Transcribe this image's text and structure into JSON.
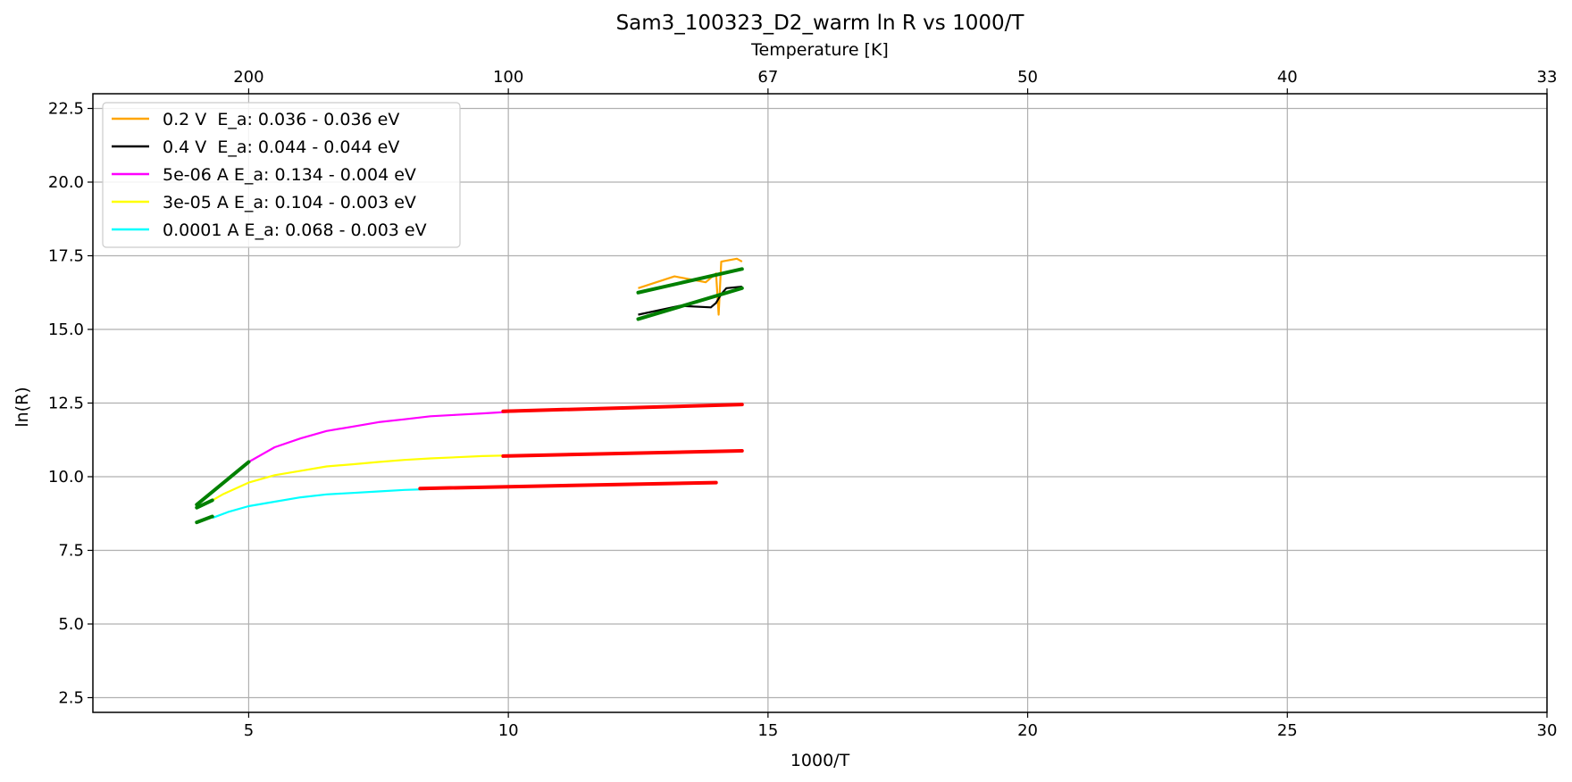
{
  "chart_data": {
    "type": "line",
    "title": "Sam3_100323_D2_warm ln R vs 1000/T",
    "xlabel": "1000/T",
    "ylabel": "ln(R)",
    "top_xlabel": "Temperature [K]",
    "xlim": [
      2,
      30
    ],
    "ylim": [
      2,
      23
    ],
    "x_ticks": [
      5,
      10,
      15,
      20,
      25,
      30
    ],
    "y_ticks": [
      2.5,
      5.0,
      7.5,
      10.0,
      12.5,
      15.0,
      17.5,
      20.0,
      22.5
    ],
    "top_ticks": [
      {
        "x": 5,
        "label": "200"
      },
      {
        "x": 10,
        "label": "100"
      },
      {
        "x": 15,
        "label": "67"
      },
      {
        "x": 20,
        "label": "50"
      },
      {
        "x": 25,
        "label": "40"
      },
      {
        "x": 30,
        "label": "33"
      }
    ],
    "grid": true,
    "legend_position": "upper-left",
    "series": [
      {
        "name": "0.2 V  E_a: 0.036 - 0.036 eV",
        "color": "#ffa500",
        "x": [
          12.5,
          13.2,
          13.8,
          14.0,
          14.05,
          14.1,
          14.4,
          14.5
        ],
        "y": [
          16.4,
          16.8,
          16.6,
          16.9,
          15.5,
          17.3,
          17.4,
          17.3
        ]
      },
      {
        "name": "0.4 V  E_a: 0.044 - 0.044 eV",
        "color": "#000000",
        "x": [
          12.5,
          13.3,
          13.9,
          14.0,
          14.1,
          14.2,
          14.5
        ],
        "y": [
          15.5,
          15.8,
          15.75,
          15.9,
          16.2,
          16.4,
          16.45
        ]
      },
      {
        "name": "5e-06 A E_a: 0.134 - 0.004 eV",
        "color": "#ff00ff",
        "x": [
          5.0,
          5.5,
          6.0,
          6.5,
          7.0,
          7.5,
          8.0,
          8.5,
          9.0,
          9.5,
          10.0,
          11.0,
          12.0,
          13.0,
          14.0,
          14.5
        ],
        "y": [
          10.5,
          11.0,
          11.3,
          11.55,
          11.7,
          11.85,
          11.95,
          12.05,
          12.1,
          12.15,
          12.2,
          12.28,
          12.33,
          12.38,
          12.42,
          12.45
        ]
      },
      {
        "name": "3e-05 A E_a: 0.104 - 0.003 eV",
        "color": "#ffff00",
        "x": [
          4.3,
          4.5,
          5.0,
          5.5,
          6.0,
          6.5,
          7.0,
          7.5,
          8.0,
          8.5,
          9.0,
          9.5,
          10.0,
          11.0,
          12.0,
          13.0,
          14.0,
          14.5
        ],
        "y": [
          9.2,
          9.4,
          9.8,
          10.05,
          10.2,
          10.35,
          10.42,
          10.5,
          10.57,
          10.62,
          10.66,
          10.7,
          10.72,
          10.76,
          10.8,
          10.84,
          10.87,
          10.88
        ]
      },
      {
        "name": "0.0001 A E_a: 0.068 - 0.003 eV",
        "color": "#00ffff",
        "x": [
          4.3,
          4.6,
          5.0,
          5.5,
          6.0,
          6.5,
          7.0,
          7.5,
          8.0,
          8.5,
          9.0,
          10.0,
          11.0,
          12.0,
          13.0,
          14.0
        ],
        "y": [
          8.6,
          8.8,
          9.0,
          9.15,
          9.3,
          9.4,
          9.45,
          9.5,
          9.55,
          9.58,
          9.62,
          9.66,
          9.7,
          9.72,
          9.75,
          9.8
        ]
      }
    ],
    "fit_lines": [
      {
        "color": "#008000",
        "x": [
          12.5,
          14.5
        ],
        "y": [
          16.25,
          17.05
        ]
      },
      {
        "color": "#008000",
        "x": [
          12.5,
          14.5
        ],
        "y": [
          15.35,
          16.4
        ]
      },
      {
        "color": "#008000",
        "x": [
          4.0,
          5.0
        ],
        "y": [
          9.05,
          10.5
        ]
      },
      {
        "color": "#008000",
        "x": [
          4.0,
          4.3
        ],
        "y": [
          8.95,
          9.2
        ]
      },
      {
        "color": "#008000",
        "x": [
          4.0,
          4.3
        ],
        "y": [
          8.45,
          8.65
        ]
      },
      {
        "color": "#ff0000",
        "x": [
          9.9,
          14.5
        ],
        "y": [
          12.22,
          12.45
        ]
      },
      {
        "color": "#ff0000",
        "x": [
          9.9,
          14.5
        ],
        "y": [
          10.7,
          10.88
        ]
      },
      {
        "color": "#ff0000",
        "x": [
          8.3,
          14.0
        ],
        "y": [
          9.6,
          9.8
        ]
      }
    ]
  }
}
